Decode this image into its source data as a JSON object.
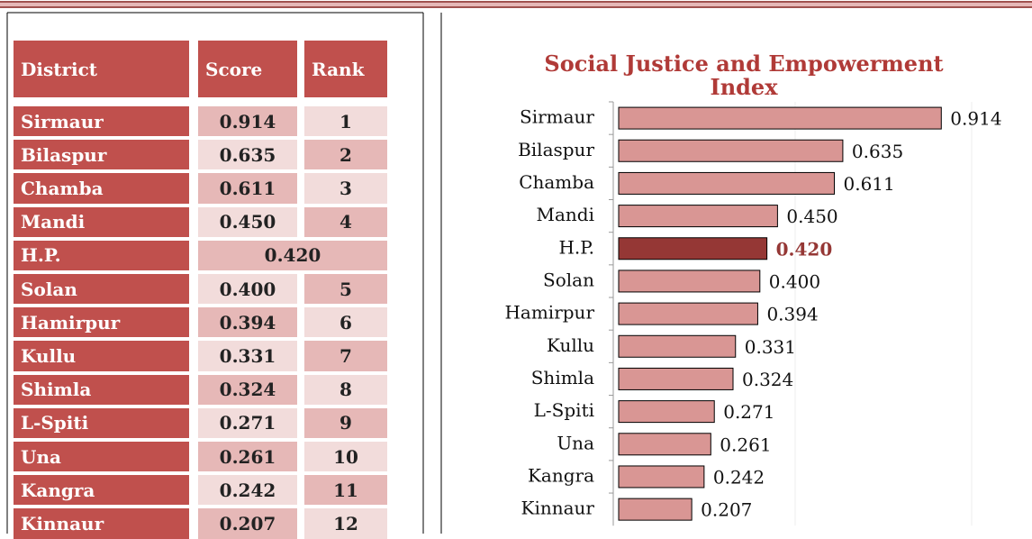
{
  "table": {
    "header": [
      "District",
      "Score",
      "Rank"
    ],
    "rows": [
      [
        "Sirmaur",
        "0.914",
        "1"
      ],
      [
        "Bilaspur",
        "0.635",
        "2"
      ],
      [
        "Chamba",
        "0.611",
        "3"
      ],
      [
        "Mandi",
        "0.450",
        "4"
      ],
      [
        "H.P.",
        "0.420"
      ],
      [
        "Solan",
        "0.400",
        "5"
      ],
      [
        "Hamirpur",
        "0.394",
        "6"
      ],
      [
        "Kullu",
        "0.331",
        "7"
      ],
      [
        "Shimla",
        "0.324",
        "8"
      ],
      [
        "L-Spiti",
        "0.271",
        "9"
      ],
      [
        "Una",
        "0.261",
        "10"
      ],
      [
        "Kangra",
        "0.242",
        "11"
      ],
      [
        "Kinnaur",
        "0.207",
        "12"
      ]
    ]
  },
  "chart_data": {
    "type": "bar",
    "orientation": "horizontal",
    "title": "Social Justice and Empowerment Index",
    "categories": [
      "Sirmaur",
      "Bilaspur",
      "Chamba",
      "Mandi",
      "H.P.",
      "Solan",
      "Hamirpur",
      "Kullu",
      "Shimla",
      "L-Spiti",
      "Una",
      "Kangra",
      "Kinnaur"
    ],
    "values": [
      0.914,
      0.635,
      0.611,
      0.45,
      0.42,
      0.4,
      0.394,
      0.331,
      0.324,
      0.271,
      0.261,
      0.242,
      0.207
    ],
    "value_labels": [
      "0.914",
      "0.635",
      "0.611",
      "0.450",
      "0.420",
      "0.400",
      "0.394",
      "0.331",
      "0.324",
      "0.271",
      "0.261",
      "0.242",
      "0.207"
    ],
    "colors": [
      "#d99694",
      "#d99694",
      "#d99694",
      "#d99694",
      "#953735",
      "#d99694",
      "#d99694",
      "#d99694",
      "#d99694",
      "#d99694",
      "#d99694",
      "#d99694",
      "#d99694"
    ],
    "xlim": [
      0,
      1
    ],
    "xticks": [
      0,
      0.5,
      1
    ],
    "grid": true
  }
}
